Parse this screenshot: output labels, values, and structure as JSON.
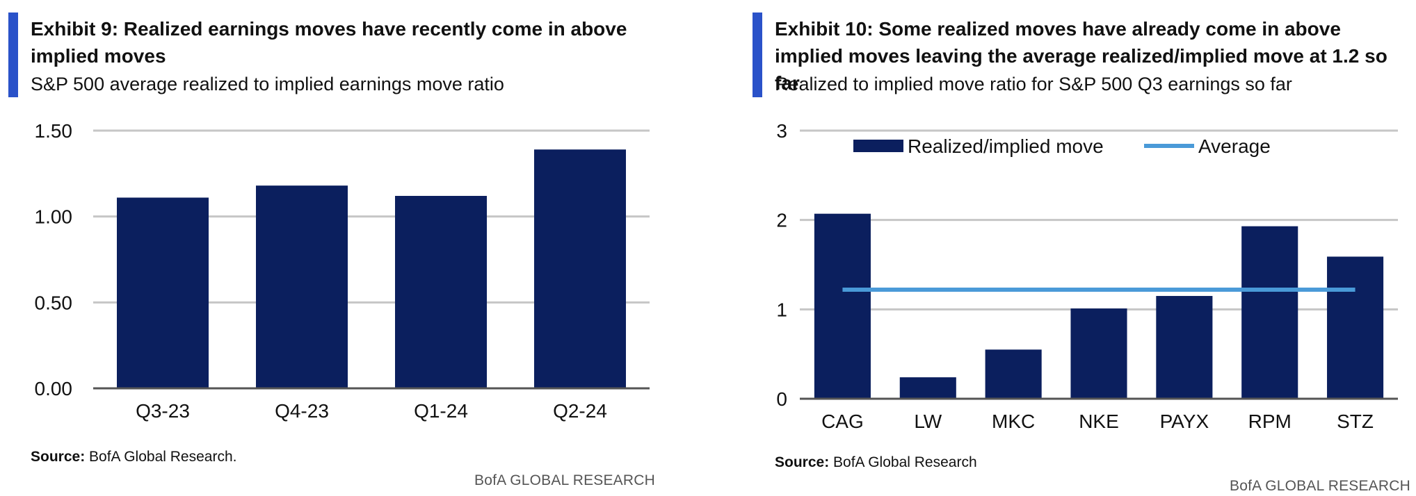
{
  "colors": {
    "accent": "#2a52c9",
    "bar": "#0b1f5e",
    "average_line": "#4a9ad8",
    "grid": "#c6c6c6",
    "axis": "#555555"
  },
  "panels": [
    {
      "title": "Exhibit 9: Realized earnings moves have recently come in above implied moves",
      "subtitle": "S&P 500 average realized to implied earnings move ratio",
      "source_label": "Source:",
      "source_text": " BofA Global Research.",
      "brand": "BofA GLOBAL RESEARCH"
    },
    {
      "title": "Exhibit 10: Some realized moves have already come in above implied moves leaving the average realized/implied move at 1.2 so far",
      "subtitle": "Realized to implied move ratio for S&P 500 Q3 earnings so far",
      "source_label": "Source:",
      "source_text": " BofA Global Research",
      "brand": "BofA GLOBAL RESEARCH"
    }
  ],
  "chart_data": [
    {
      "type": "bar",
      "title": "Exhibit 9: Realized earnings moves have recently come in above implied moves",
      "subtitle": "S&P 500 average realized to implied earnings move ratio",
      "categories": [
        "Q3-23",
        "Q4-23",
        "Q1-24",
        "Q2-24"
      ],
      "values": [
        1.11,
        1.18,
        1.12,
        1.39
      ],
      "ylim": [
        0,
        1.5
      ],
      "yticks": [
        0,
        0.5,
        1.0,
        1.5
      ],
      "ytick_labels": [
        "0.00",
        "0.50",
        "1.00",
        "1.50"
      ],
      "xlabel": "",
      "ylabel": "",
      "grid": true,
      "legend": null
    },
    {
      "type": "bar",
      "title": "Exhibit 10: Some realized moves have already come in above implied moves leaving the average realized/implied move at 1.2 so far",
      "subtitle": "Realized to implied move ratio for S&P 500 Q3 earnings so far",
      "categories": [
        "CAG",
        "LW",
        "MKC",
        "NKE",
        "PAYX",
        "RPM",
        "STZ"
      ],
      "series": [
        {
          "name": "Realized/implied move",
          "type": "bar",
          "values": [
            2.07,
            0.24,
            0.55,
            1.01,
            1.15,
            1.93,
            1.59
          ]
        },
        {
          "name": "Average",
          "type": "line",
          "values": [
            1.22,
            1.22,
            1.22,
            1.22,
            1.22,
            1.22,
            1.22
          ]
        }
      ],
      "ylim": [
        0,
        3
      ],
      "yticks": [
        0,
        1,
        2,
        3
      ],
      "ytick_labels": [
        "0",
        "1",
        "2",
        "3"
      ],
      "xlabel": "",
      "ylabel": "",
      "grid": true,
      "legend": "top"
    }
  ]
}
